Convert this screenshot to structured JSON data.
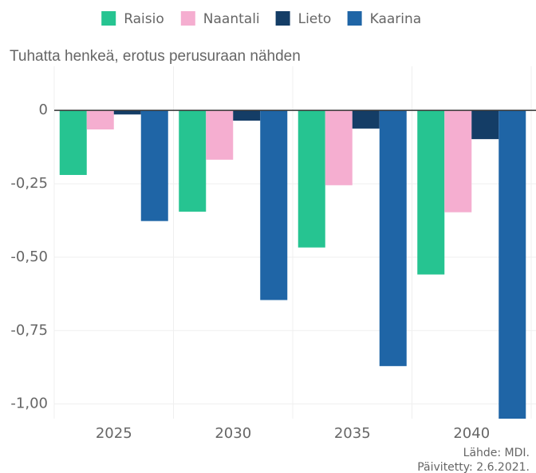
{
  "chart_data": {
    "type": "bar",
    "y_axis_label": "Tuhatta henkeä, erotus perusuraan nähden",
    "categories": [
      "2025",
      "2030",
      "2035",
      "2040"
    ],
    "series": [
      {
        "name": "Raisio",
        "color": "#26c491",
        "values": [
          -0.22,
          -0.345,
          -0.467,
          -0.559
        ]
      },
      {
        "name": "Naantali",
        "color": "#f5aed0",
        "values": [
          -0.065,
          -0.168,
          -0.255,
          -0.347
        ]
      },
      {
        "name": "Lieto",
        "color": "#143d66",
        "values": [
          -0.014,
          -0.035,
          -0.062,
          -0.098
        ]
      },
      {
        "name": "Kaarina",
        "color": "#1f65a6",
        "values": [
          -0.377,
          -0.646,
          -0.871,
          -1.08
        ]
      }
    ],
    "ylim": [
      -1.05,
      0.15
    ],
    "yticks": [
      0,
      {
        "value": -0.25,
        "label": "-0,25"
      },
      {
        "value": -0.5,
        "label": "-0,50"
      },
      {
        "value": -0.75,
        "label": "-0,75"
      },
      {
        "value": -1,
        "label": "-1,00"
      }
    ],
    "grid": true,
    "legend": "top",
    "source": [
      "Lähde: MDI.",
      "Päivitetty: 2.6.2021."
    ]
  }
}
